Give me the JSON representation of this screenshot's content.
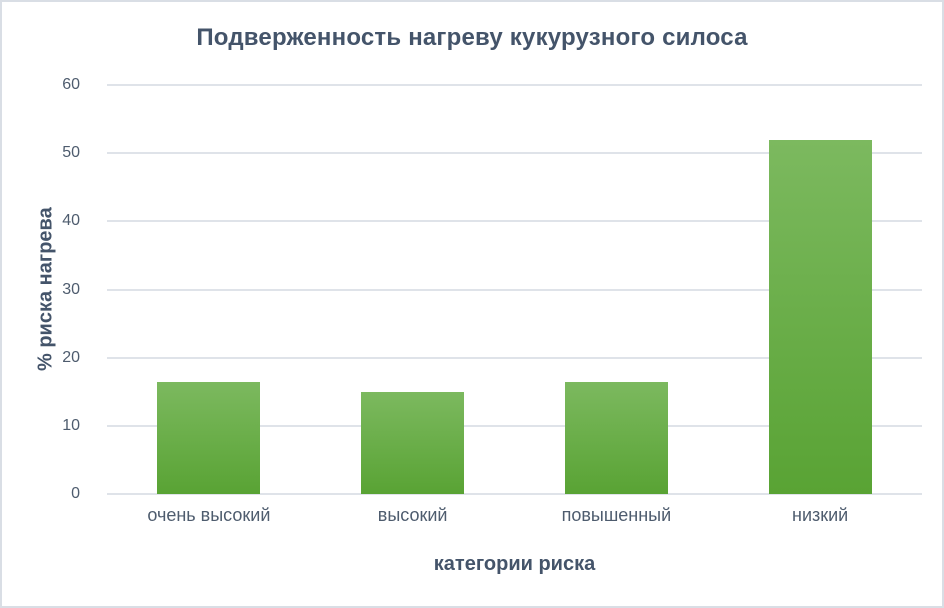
{
  "chart_data": {
    "type": "bar",
    "title": "Подверженность нагреву кукурузного силоса",
    "xlabel": "категории риска",
    "ylabel": "% риска нагрева",
    "categories": [
      "очень высокий",
      "высокий",
      "повышенный",
      "низкий"
    ],
    "values": [
      16.5,
      15,
      16.5,
      52
    ],
    "ylim": [
      0,
      60
    ],
    "yticks": [
      0,
      10,
      20,
      30,
      40,
      50,
      60
    ],
    "grid": true,
    "legend": false,
    "colors": {
      "title": "#44546A",
      "axis_label": "#44546A",
      "tick_label": "#4E5C6E",
      "gridline": "#DFE3E9",
      "border": "#D9DEE5",
      "background": "#FFFFFF",
      "bar_gradient_top": "#7CB95F",
      "bar_gradient_bottom": "#59A334"
    }
  }
}
